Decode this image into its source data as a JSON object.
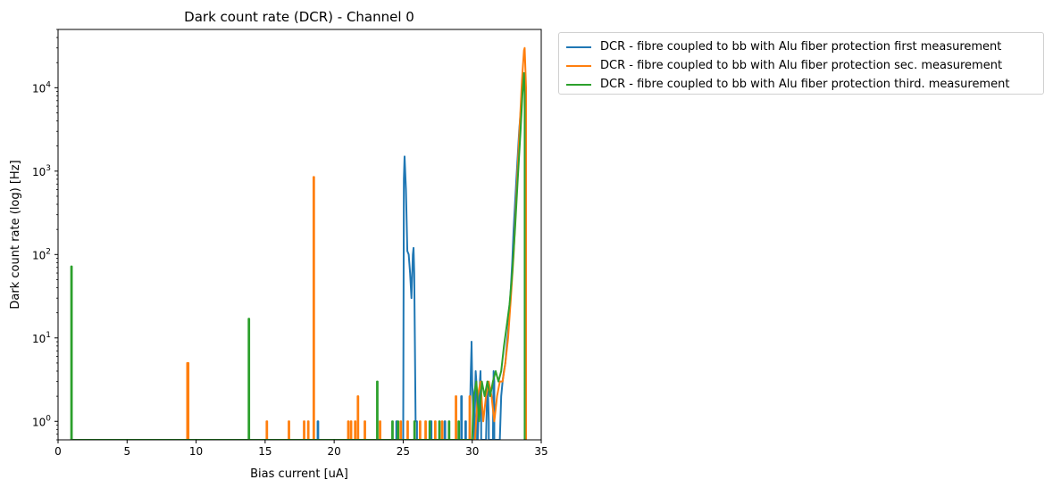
{
  "chart_data": {
    "type": "line",
    "title": "Dark count rate (DCR) - Channel 0",
    "xlabel": "Bias current [uA]",
    "ylabel": "Dark count rate (log) [Hz]",
    "xlim": [
      0,
      35
    ],
    "ylim": [
      0.6,
      50000
    ],
    "yscale": "log",
    "grid": false,
    "legend_position": "outside-top-right",
    "xticks": [
      0,
      5,
      10,
      15,
      20,
      25,
      30,
      35
    ],
    "xtick_labels": [
      "0",
      "5",
      "10",
      "15",
      "20",
      "25",
      "30",
      "35"
    ],
    "yticks": [
      1,
      10,
      100,
      1000,
      10000
    ],
    "ytick_exponents": [
      "0",
      "1",
      "2",
      "3",
      "4"
    ],
    "ytick_base": "10",
    "series": [
      {
        "name": "DCR - fibre coupled to bb with Alu fiber protection first measurement",
        "color": "#1f77b4",
        "x": [
          18.8,
          18.8,
          18.85,
          18.85,
          24.5,
          24.5,
          24.55,
          24.55,
          25.0,
          25.05,
          25.1,
          25.2,
          25.3,
          25.4,
          25.5,
          25.6,
          25.7,
          25.75,
          25.8,
          25.85,
          25.9,
          25.95,
          26.0,
          26.0,
          27.0,
          27.0,
          27.05,
          27.05,
          28.0,
          28.0,
          28.05,
          28.05,
          29.2,
          29.2,
          29.25,
          29.25,
          29.5,
          29.5,
          29.55,
          29.55,
          29.8,
          29.9,
          29.95,
          29.95,
          30.0,
          30.1,
          30.15,
          30.2,
          30.25,
          30.3,
          30.35,
          30.35,
          30.4,
          30.5,
          30.6,
          30.65,
          30.65,
          31.0,
          31.1,
          31.15,
          31.2,
          31.2,
          31.5,
          31.55,
          31.6,
          31.6,
          32.0,
          32.1,
          32.2,
          32.3,
          32.4,
          32.5,
          32.6,
          32.7,
          32.8,
          32.9,
          33.0,
          33.2,
          33.4,
          33.6,
          33.75,
          33.8,
          33.85,
          33.85
        ],
        "y": [
          0.6,
          1,
          1,
          0.6,
          0.6,
          1,
          1,
          0.6,
          0.6,
          800,
          1500,
          600,
          110,
          100,
          60,
          30,
          100,
          120,
          60,
          8,
          1,
          1,
          1,
          0.6,
          0.6,
          1,
          1,
          0.6,
          0.6,
          1,
          1,
          0.6,
          0.6,
          2,
          2,
          0.6,
          0.6,
          1,
          1,
          0.6,
          0.6,
          4,
          8,
          9,
          3,
          1,
          0.6,
          2,
          4,
          3,
          1,
          0.6,
          0.6,
          2,
          4,
          1,
          0.6,
          0.6,
          3,
          2,
          1,
          0.6,
          0.6,
          4,
          3,
          0.6,
          0.6,
          2,
          3,
          4,
          5,
          8,
          12,
          20,
          40,
          80,
          200,
          800,
          3000,
          8000,
          15000,
          12000,
          5000,
          0.6
        ]
      },
      {
        "name": "DCR - fibre coupled to bb with Alu fiber protection sec. measurement",
        "color": "#ff7f0e",
        "x": [
          9.35,
          9.35,
          9.45,
          9.45,
          15.1,
          15.1,
          15.15,
          15.15,
          16.7,
          16.7,
          16.75,
          16.75,
          17.8,
          17.8,
          17.85,
          17.85,
          18.1,
          18.1,
          18.15,
          18.15,
          18.5,
          18.5,
          18.55,
          18.55,
          21.0,
          21.0,
          21.05,
          21.05,
          21.2,
          21.2,
          21.25,
          21.25,
          21.5,
          21.5,
          21.55,
          21.55,
          21.7,
          21.7,
          21.75,
          21.75,
          22.2,
          22.2,
          22.25,
          22.25,
          23.3,
          23.3,
          23.35,
          23.35,
          24.8,
          24.8,
          24.85,
          24.85,
          25.3,
          25.3,
          25.35,
          25.35,
          26.2,
          26.2,
          26.25,
          26.25,
          26.6,
          26.6,
          26.65,
          26.65,
          27.3,
          27.3,
          27.35,
          27.35,
          27.8,
          27.8,
          27.85,
          27.85,
          28.8,
          28.8,
          28.85,
          28.85,
          29.8,
          29.8,
          29.85,
          29.85,
          30.2,
          30.4,
          30.6,
          30.8,
          31.0,
          31.2,
          31.4,
          31.6,
          31.8,
          32.0,
          32.2,
          32.4,
          32.6,
          32.8,
          33.0,
          33.2,
          33.4,
          33.6,
          33.75,
          33.8,
          33.9,
          33.9
        ],
        "y": [
          0.6,
          5,
          5,
          0.6,
          0.6,
          1,
          1,
          0.6,
          0.6,
          1,
          1,
          0.6,
          0.6,
          1,
          1,
          0.6,
          0.6,
          1,
          1,
          0.6,
          0.6,
          850,
          850,
          0.6,
          0.6,
          1,
          1,
          0.6,
          0.6,
          1,
          1,
          0.6,
          0.6,
          1,
          1,
          0.6,
          0.6,
          2,
          2,
          0.6,
          0.6,
          1,
          1,
          0.6,
          0.6,
          1,
          1,
          0.6,
          0.6,
          1,
          1,
          0.6,
          0.6,
          1,
          1,
          0.6,
          0.6,
          1,
          1,
          0.6,
          0.6,
          1,
          1,
          0.6,
          0.6,
          1,
          1,
          0.6,
          0.6,
          1,
          1,
          0.6,
          0.6,
          2,
          2,
          0.6,
          0.6,
          2,
          2,
          0.6,
          0.6,
          2,
          3,
          1,
          2,
          3,
          2,
          1,
          2,
          3,
          3,
          5,
          10,
          30,
          100,
          500,
          2500,
          12000,
          28000,
          30000,
          10000,
          0.6
        ]
      },
      {
        "name": "DCR - fibre coupled to bb with Alu fiber protection third. measurement",
        "color": "#2ca02c",
        "x": [
          0.95,
          0.95,
          1.0,
          1.0,
          13.8,
          13.8,
          13.85,
          13.85,
          23.1,
          23.1,
          23.15,
          23.15,
          24.2,
          24.2,
          24.25,
          24.25,
          24.6,
          24.6,
          24.65,
          24.65,
          25.8,
          25.8,
          25.85,
          25.85,
          26.9,
          26.9,
          26.95,
          26.95,
          27.6,
          27.6,
          27.65,
          27.65,
          28.3,
          28.3,
          28.35,
          28.35,
          29.0,
          29.0,
          29.05,
          29.05,
          30.0,
          30.1,
          30.3,
          30.5,
          30.7,
          30.9,
          31.1,
          31.3,
          31.5,
          31.7,
          31.9,
          32.1,
          32.3,
          32.5,
          32.7,
          32.9,
          33.1,
          33.3,
          33.5,
          33.65,
          33.75,
          33.8,
          33.8
        ],
        "y": [
          0.6,
          72,
          72,
          0.6,
          0.6,
          17,
          17,
          0.6,
          0.6,
          3,
          3,
          0.6,
          0.6,
          1,
          1,
          0.6,
          0.6,
          1,
          1,
          0.6,
          0.6,
          1,
          1,
          0.6,
          0.6,
          1,
          1,
          0.6,
          0.6,
          1,
          1,
          0.6,
          0.6,
          1,
          1,
          0.6,
          0.6,
          1,
          1,
          0.6,
          0.6,
          2,
          3,
          1,
          3,
          2,
          3,
          2,
          3,
          4,
          3,
          4,
          8,
          14,
          25,
          60,
          200,
          800,
          3000,
          9000,
          15000,
          8000,
          0.6
        ]
      }
    ]
  }
}
